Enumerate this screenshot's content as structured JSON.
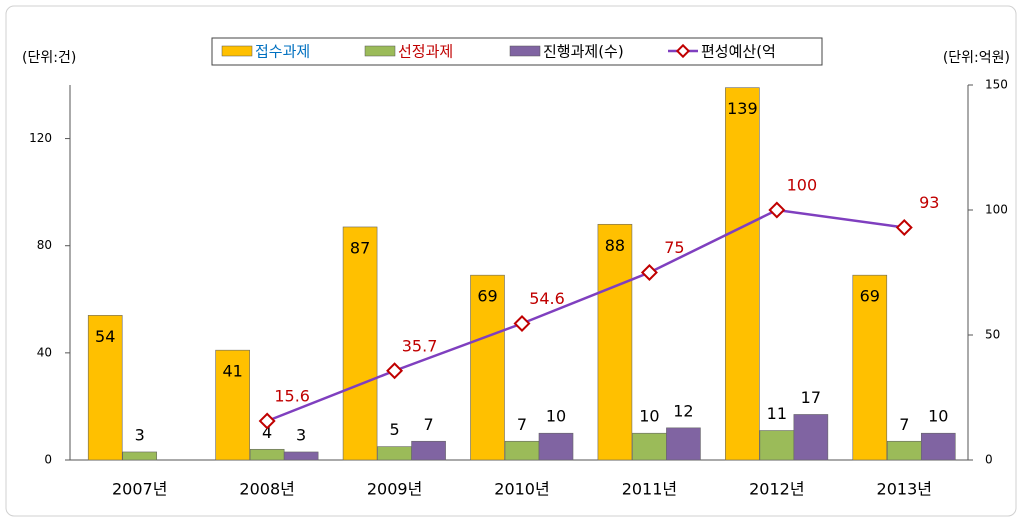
{
  "chart_data": {
    "type": "bar",
    "left_unit": "(단위:건)",
    "right_unit": "(단위:억원)",
    "categories": [
      "2007년",
      "2008년",
      "2009년",
      "2010년",
      "2011년",
      "2012년",
      "2013년"
    ],
    "series": [
      {
        "name": "접수과제",
        "color": "#ffc000",
        "values": [
          54,
          41,
          87,
          69,
          88,
          139,
          69
        ]
      },
      {
        "name": "선정과제",
        "color": "#9bbb59",
        "values": [
          3,
          4,
          5,
          7,
          10,
          11,
          7
        ]
      },
      {
        "name": "진행과제(수)",
        "color": "#8064a2",
        "values": [
          null,
          3,
          7,
          10,
          12,
          17,
          10
        ]
      },
      {
        "name": "편성예산(억",
        "type": "line",
        "axis": "y2",
        "color": "#7f3fbf",
        "marker_color": "#c00000",
        "values": [
          null,
          15.6,
          35.7,
          54.6,
          75,
          100,
          93
        ]
      }
    ],
    "ylim": [
      0,
      140
    ],
    "yticks": [
      0,
      40,
      80,
      120
    ],
    "y2lim": [
      0,
      150
    ],
    "y2ticks": [
      0,
      50,
      100,
      150
    ],
    "grid": false
  }
}
